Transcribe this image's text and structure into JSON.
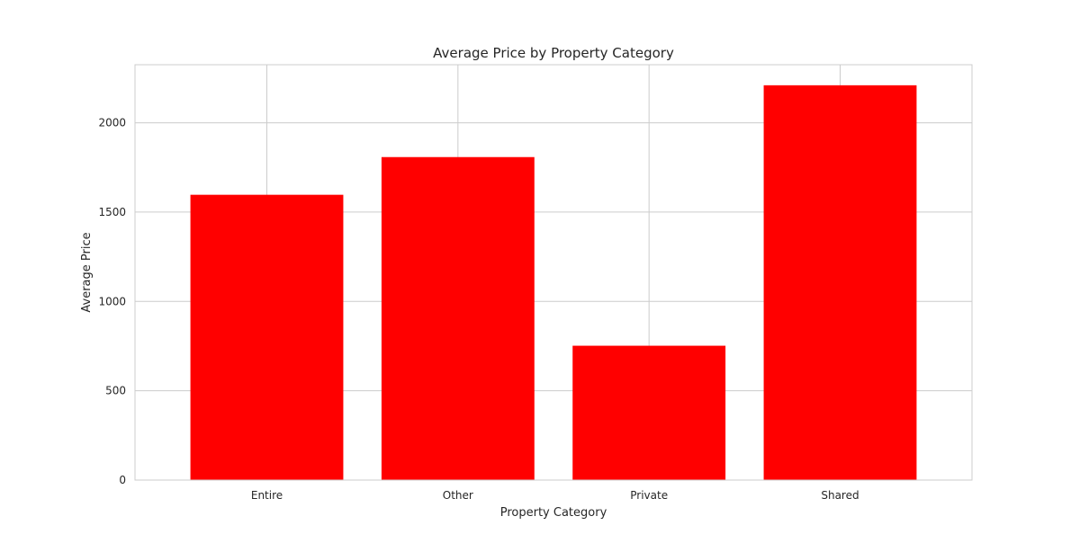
{
  "chart_data": {
    "type": "bar",
    "title": "Average Price by Property Category",
    "xlabel": "Property Category",
    "ylabel": "Average Price",
    "categories": [
      "Entire",
      "Other",
      "Private",
      "Shared"
    ],
    "values": [
      1597,
      1808,
      752,
      2210
    ],
    "ylim": [
      0,
      2325
    ],
    "yticks": [
      0,
      500,
      1000,
      1500,
      2000
    ],
    "grid": true,
    "legend": "none",
    "bar_color": "#ff0000",
    "grid_color": "#cccccc",
    "axes_edge_color": "#cccccc"
  }
}
